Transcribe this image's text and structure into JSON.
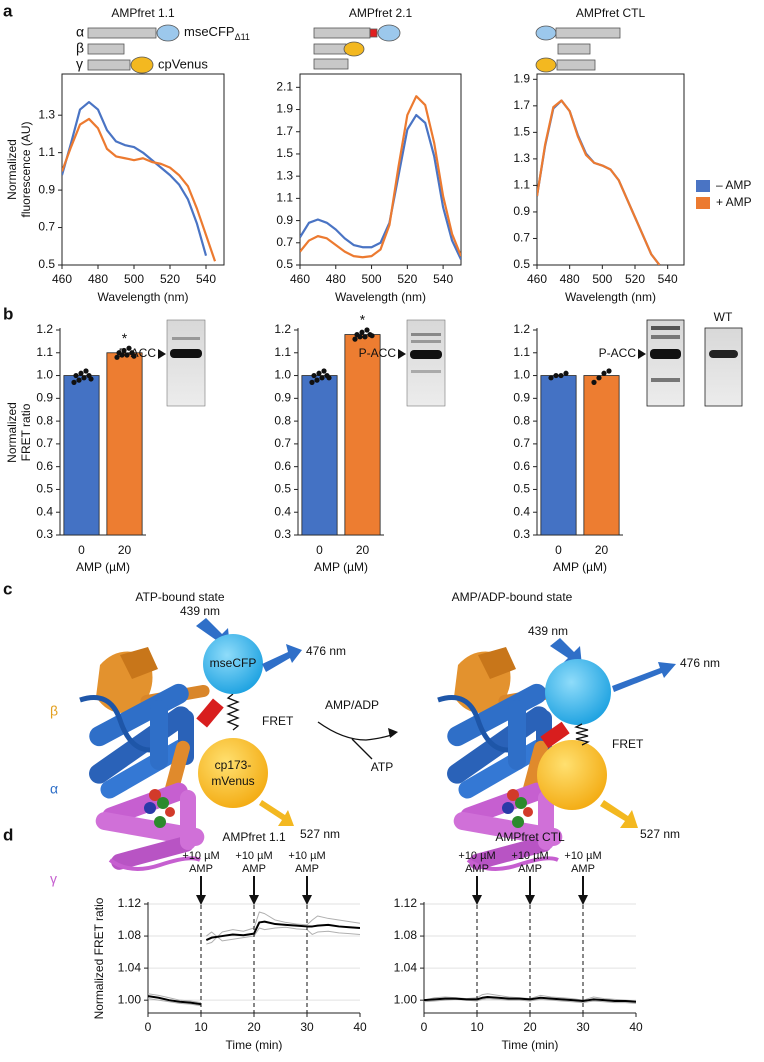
{
  "panel_labels": [
    "a",
    "b",
    "c",
    "d"
  ],
  "constructs": {
    "alpha": "α",
    "beta": "β",
    "gamma": "γ",
    "cfp": "mseCFP",
    "cfp_subscript": "Δ11",
    "venus": "cpVenus"
  },
  "diagram": {
    "left_title": "ATP-bound state",
    "right_title": "AMP/ADP-bound state",
    "subunits": [
      "β",
      "α",
      "γ"
    ],
    "excitation": "439 nm",
    "cfp_emission": "476 nm",
    "cfp": "mseCFP",
    "fret": "FRET",
    "venus": [
      "cp173-",
      "mVenus"
    ],
    "venus_emission": "527 nm",
    "reaction_in": "AMP/ADP",
    "reaction_out": "ATP"
  },
  "chart_data": [
    {
      "type": "line",
      "title": "AMPfret 1.1",
      "frame": true,
      "x": [
        460,
        465,
        470,
        475,
        480,
        485,
        490,
        495,
        500,
        505,
        510,
        515,
        520,
        525,
        530,
        535,
        540,
        545,
        550
      ],
      "series": [
        {
          "color": "#4a74c4",
          "values": [
            0.98,
            1.15,
            1.33,
            1.37,
            1.33,
            1.22,
            1.16,
            1.14,
            1.13,
            1.1,
            1.06,
            1.02,
            0.98,
            0.93,
            0.85,
            0.72,
            0.55,
            null,
            null
          ]
        },
        {
          "color": "#ec7a30",
          "values": [
            1.0,
            1.13,
            1.25,
            1.28,
            1.23,
            1.12,
            1.08,
            1.07,
            1.06,
            1.07,
            1.05,
            1.04,
            1.02,
            0.98,
            0.92,
            0.8,
            0.66,
            0.52,
            null
          ]
        }
      ],
      "xlim": [
        460,
        550
      ],
      "xticks": [
        460,
        480,
        500,
        520,
        540
      ],
      "ylim": [
        0.5,
        1.52
      ],
      "yticks": [
        0.5,
        0.7,
        0.9,
        1.1,
        1.3
      ],
      "xlabel": "Wavelength (nm)",
      "ylabel": [
        "Normalized",
        "fluorescence (AU)"
      ]
    },
    {
      "type": "line",
      "title": "AMPfret 2.1",
      "frame": true,
      "x": [
        460,
        465,
        470,
        475,
        480,
        485,
        490,
        495,
        500,
        505,
        510,
        515,
        520,
        525,
        530,
        535,
        540,
        545,
        550
      ],
      "series": [
        {
          "color": "#4a74c4",
          "values": [
            0.75,
            0.88,
            0.91,
            0.88,
            0.82,
            0.74,
            0.68,
            0.66,
            0.66,
            0.7,
            0.88,
            1.3,
            1.72,
            1.85,
            1.78,
            1.48,
            1.02,
            0.72,
            0.55
          ]
        },
        {
          "color": "#ec7a30",
          "values": [
            0.62,
            0.72,
            0.76,
            0.74,
            0.68,
            0.62,
            0.58,
            0.57,
            0.58,
            0.64,
            0.86,
            1.38,
            1.85,
            2.02,
            1.94,
            1.6,
            1.12,
            0.78,
            0.58
          ]
        }
      ],
      "xlim": [
        460,
        550
      ],
      "xticks": [
        460,
        480,
        500,
        520,
        540
      ],
      "ylim": [
        0.5,
        2.22
      ],
      "yticks": [
        0.5,
        0.7,
        0.9,
        1.1,
        1.3,
        1.5,
        1.7,
        1.9,
        2.1
      ],
      "xlabel": "Wavelength (nm)"
    },
    {
      "type": "line",
      "title": "AMPfret CTL",
      "frame": true,
      "legend": "right",
      "x": [
        460,
        465,
        470,
        475,
        480,
        485,
        490,
        495,
        500,
        505,
        510,
        515,
        520,
        525,
        530,
        535,
        540,
        545,
        550
      ],
      "series": [
        {
          "name": "– AMP",
          "color": "#4a74c4",
          "values": [
            1.02,
            1.4,
            1.68,
            1.74,
            1.66,
            1.48,
            1.34,
            1.27,
            1.25,
            1.22,
            1.14,
            1.0,
            0.86,
            0.72,
            0.58,
            0.5,
            null,
            null,
            null
          ]
        },
        {
          "name": "+ AMP",
          "color": "#ec7a30",
          "values": [
            1.02,
            1.41,
            1.69,
            1.74,
            1.66,
            1.47,
            1.33,
            1.27,
            1.25,
            1.22,
            1.14,
            1.0,
            0.86,
            0.72,
            0.58,
            0.5,
            null,
            null,
            null
          ]
        }
      ],
      "xlim": [
        460,
        550
      ],
      "xticks": [
        460,
        480,
        500,
        520,
        540
      ],
      "ylim": [
        0.5,
        1.94
      ],
      "yticks": [
        0.5,
        0.7,
        0.9,
        1.1,
        1.3,
        1.5,
        1.7,
        1.9
      ],
      "xlabel": "Wavelength (nm)"
    },
    {
      "type": "bar",
      "categories": [
        "0",
        "20"
      ],
      "values": [
        1.0,
        1.1
      ],
      "colors": [
        "#4472c4",
        "#ed7d31"
      ],
      "points": [
        [
          0.97,
          0.98,
          0.99,
          1.0,
          1.0,
          1.01,
          1.02,
          0.985
        ],
        [
          1.08,
          1.09,
          1.09,
          1.1,
          1.1,
          1.11,
          1.12,
          1.085
        ]
      ],
      "significance": [
        null,
        "*"
      ],
      "blot_label": "P-ACC",
      "ylim": [
        0.3,
        1.2
      ],
      "yticks": [
        0.3,
        0.4,
        0.5,
        0.6,
        0.7,
        0.8,
        0.9,
        {
          "value": 1,
          "label": "1.0"
        },
        1.1,
        1.2
      ],
      "xlabel": "AMP (µM)",
      "ylabel": [
        "Normalized",
        "FRET ratio"
      ]
    },
    {
      "type": "bar",
      "categories": [
        "0",
        "20"
      ],
      "values": [
        1.0,
        1.18
      ],
      "colors": [
        "#4472c4",
        "#ed7d31"
      ],
      "points": [
        [
          0.97,
          0.98,
          0.99,
          1.0,
          1.0,
          1.01,
          1.02,
          0.99
        ],
        [
          1.16,
          1.17,
          1.17,
          1.18,
          1.18,
          1.19,
          1.2,
          1.175
        ]
      ],
      "significance": [
        null,
        "*"
      ],
      "blot_label": "P-ACC",
      "ylim": [
        0.3,
        1.2
      ],
      "yticks": [
        0.3,
        0.4,
        0.5,
        0.6,
        0.7,
        0.8,
        0.9,
        {
          "value": 1,
          "label": "1.0"
        },
        1.1,
        1.2
      ],
      "xlabel": "AMP (µM)"
    },
    {
      "type": "bar",
      "categories": [
        "0",
        "20"
      ],
      "values": [
        1.0,
        1.0
      ],
      "colors": [
        "#4472c4",
        "#ed7d31"
      ],
      "points": [
        [
          0.99,
          1.0,
          1.0,
          1.01
        ],
        [
          0.97,
          0.99,
          1.01,
          1.02
        ]
      ],
      "blot_label": "P-ACC",
      "blot_extra_label": "WT",
      "ylim": [
        0.3,
        1.2
      ],
      "yticks": [
        0.3,
        0.4,
        0.5,
        0.6,
        0.7,
        0.8,
        0.9,
        {
          "value": 1,
          "label": "1.0"
        },
        1.1,
        1.2
      ],
      "xlabel": "AMP (µM)"
    },
    {
      "type": "line",
      "title": "AMPfret 1.1",
      "grid": true,
      "x": [
        0,
        2,
        4,
        6,
        8,
        10,
        10.5,
        11,
        12,
        14,
        16,
        18,
        20,
        21,
        22,
        24,
        26,
        28,
        30,
        31,
        32,
        34,
        36,
        38,
        40
      ],
      "series": [
        {
          "color": "#b0b0b0",
          "values": [
            1.008,
            1.006,
            1.003,
            1.0,
            0.999,
            0.997,
            null,
            1.07,
            1.072,
            1.085,
            1.088,
            1.086,
            1.09,
            1.11,
            1.108,
            1.1,
            1.097,
            1.095,
            1.094,
            1.1,
            1.105,
            1.102,
            1.1,
            1.098,
            1.096
          ]
        },
        {
          "color": "#b0b0b0",
          "values": [
            1.002,
            1.0,
            0.998,
            0.996,
            0.995,
            0.993,
            null,
            1.08,
            1.085,
            1.074,
            1.076,
            1.078,
            1.08,
            1.09,
            1.088,
            1.09,
            1.091,
            1.089,
            1.088,
            1.082,
            1.085,
            1.086,
            1.084,
            1.083,
            1.082
          ]
        },
        {
          "color": "#000000",
          "values": [
            1.005,
            1.003,
            1.0,
            0.998,
            0.997,
            0.995,
            null,
            1.075,
            1.078,
            1.08,
            1.082,
            1.081,
            1.083,
            1.097,
            1.098,
            1.095,
            1.094,
            1.093,
            1.092,
            1.092,
            1.093,
            1.094,
            1.092,
            1.091,
            1.09
          ]
        }
      ],
      "xlim": [
        0,
        40
      ],
      "xticks": [
        0,
        10,
        20,
        30,
        40
      ],
      "ylim": [
        0.984,
        1.12
      ],
      "yticks": [
        {
          "value": 1,
          "label": "1.00"
        },
        1.04,
        1.08,
        1.12
      ],
      "annotations": [
        {
          "x": 10,
          "lines": [
            "+10 µM",
            "AMP"
          ]
        },
        {
          "x": 20,
          "lines": [
            "+10 µM",
            "AMP"
          ]
        },
        {
          "x": 30,
          "lines": [
            "+10 µM",
            "AMP"
          ]
        }
      ],
      "xlabel": "Time (min)",
      "ylabel": "Normalized FRET ratio"
    },
    {
      "type": "line",
      "title": "AMPfret CTL",
      "grid": true,
      "x": [
        0,
        2,
        4,
        6,
        8,
        10,
        10.5,
        11,
        12,
        14,
        16,
        18,
        20,
        21,
        22,
        24,
        26,
        28,
        30,
        31,
        32,
        34,
        36,
        38,
        40
      ],
      "series": [
        {
          "color": "#b0b0b0",
          "values": [
            1.0,
            1.003,
            1.004,
            1.003,
            1.002,
            1.003,
            1.005,
            1.007,
            1.008,
            1.006,
            1.004,
            1.003,
            1.002,
            1.004,
            1.006,
            1.004,
            1.003,
            1.002,
            1.0,
            1.002,
            1.004,
            1.002,
            1.001,
            1.0,
            0.999
          ]
        },
        {
          "color": "#b0b0b0",
          "values": [
            0.998,
            0.999,
            1.0,
            1.001,
            1.0,
            0.999,
            1.0,
            1.001,
            1.002,
            1.001,
            1.0,
            1.0,
            0.999,
            1.0,
            1.001,
            1.0,
            0.999,
            0.998,
            0.997,
            0.998,
            0.999,
            0.998,
            0.997,
            0.997,
            0.996
          ]
        },
        {
          "color": "#000000",
          "values": [
            1.0,
            1.001,
            1.002,
            1.002,
            1.001,
            1.001,
            1.002,
            1.003,
            1.004,
            1.003,
            1.002,
            1.002,
            1.001,
            1.002,
            1.003,
            1.002,
            1.001,
            1.0,
            0.999,
            1.0,
            1.001,
            1.0,
            0.999,
            0.999,
            0.998
          ]
        }
      ],
      "xlim": [
        0,
        40
      ],
      "xticks": [
        0,
        10,
        20,
        30,
        40
      ],
      "ylim": [
        0.984,
        1.12
      ],
      "yticks": [
        {
          "value": 1,
          "label": "1.00"
        },
        1.04,
        1.08,
        1.12
      ],
      "annotations": [
        {
          "x": 10,
          "lines": [
            "+10 µM",
            "AMP"
          ]
        },
        {
          "x": 20,
          "lines": [
            "+10 µM",
            "AMP"
          ]
        },
        {
          "x": 30,
          "lines": [
            "+10 µM",
            "AMP"
          ]
        }
      ],
      "xlabel": "Time (min)"
    }
  ]
}
